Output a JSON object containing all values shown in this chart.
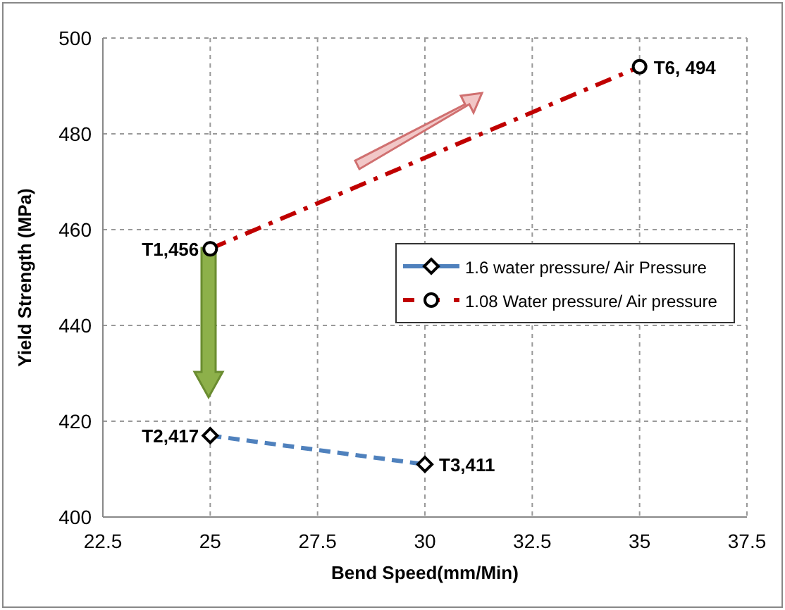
{
  "chart_data": {
    "type": "line",
    "xlabel": "Bend Speed(mm/Min)",
    "ylabel": "Yield Strength (MPa)",
    "xlim": [
      22.5,
      37.5
    ],
    "xticks": [
      22.5,
      25,
      27.5,
      30,
      32.5,
      35,
      37.5
    ],
    "ylim": [
      400,
      500
    ],
    "yticks": [
      400,
      420,
      440,
      460,
      480,
      500
    ],
    "grid": true,
    "legend": "right",
    "series": [
      {
        "name": "1.6 water pressure/ Air Pressure",
        "color": "#4f81bd",
        "x": [
          25,
          30
        ],
        "values": [
          417,
          411
        ],
        "marker": "diamond",
        "line_style": "dashed",
        "value_labels": [
          "T2,417",
          "T3,411"
        ]
      },
      {
        "name": "1.08 Water pressure/ Air pressure",
        "color": "#c00000",
        "x": [
          25,
          35
        ],
        "values": [
          456,
          494
        ],
        "marker": "circle",
        "line_style": "dashed",
        "value_labels": [
          "T1,456",
          "T6, 494"
        ]
      }
    ]
  }
}
